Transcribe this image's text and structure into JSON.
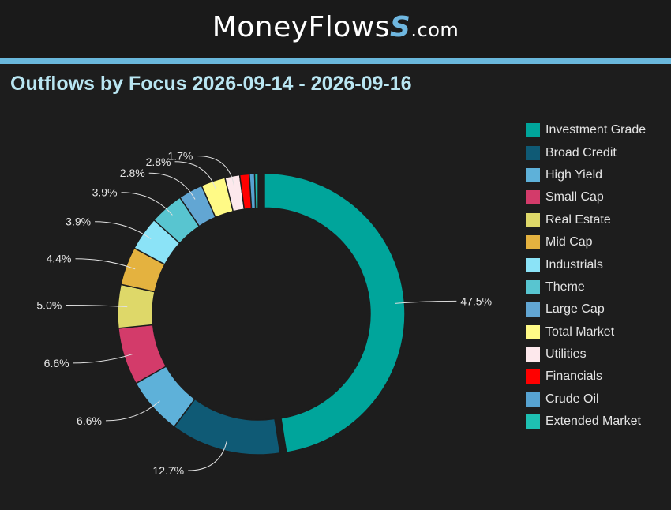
{
  "header": {
    "brand_name": "MoneyFlows",
    "brand_suffix": ".com"
  },
  "chart_data": {
    "type": "pie",
    "title": "Outflows by Focus 2026-09-14 - 2026-09-16",
    "legend_position": "right",
    "donut": true,
    "slices": [
      {
        "name": "Investment Grade",
        "value": 47.5,
        "label": "47.5%",
        "color": "#00a59b",
        "exploded": true
      },
      {
        "name": "Broad Credit",
        "value": 12.7,
        "label": "12.7%",
        "color": "#0f5a75"
      },
      {
        "name": "High Yield",
        "value": 6.6,
        "label": "6.6%",
        "color": "#5eb1d9"
      },
      {
        "name": "Small Cap",
        "value": 6.6,
        "label": "6.6%",
        "color": "#d33b6a"
      },
      {
        "name": "Real Estate",
        "value": 5.0,
        "label": "5.0%",
        "color": "#ded869"
      },
      {
        "name": "Mid Cap",
        "value": 4.4,
        "label": "4.4%",
        "color": "#e4b23f"
      },
      {
        "name": "Industrials",
        "value": 3.9,
        "label": "3.9%",
        "color": "#8be3f7"
      },
      {
        "name": "Theme",
        "value": 3.9,
        "label": "3.9%",
        "color": "#58c5d0"
      },
      {
        "name": "Large Cap",
        "value": 2.8,
        "label": "2.8%",
        "color": "#62a6d3"
      },
      {
        "name": "Total Market",
        "value": 2.8,
        "label": "2.8%",
        "color": "#fffa86"
      },
      {
        "name": "Utilities",
        "value": 1.7,
        "label": "1.7%",
        "color": "#fde8ec"
      },
      {
        "name": "Financials",
        "value": 1.1,
        "label": "",
        "color": "#ff0000"
      },
      {
        "name": "Crude Oil",
        "value": 0.6,
        "label": "",
        "color": "#57a3d1"
      },
      {
        "name": "Extended Market",
        "value": 0.4,
        "label": "",
        "color": "#1ec0b2"
      }
    ]
  }
}
